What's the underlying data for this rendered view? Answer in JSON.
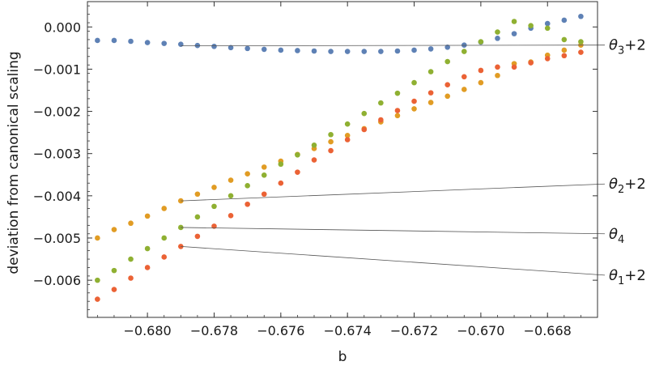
{
  "chart_data": {
    "type": "scatter",
    "xlabel": "b",
    "ylabel": "deviation from canonical scaling",
    "xlim": [
      -0.6818,
      -0.6665
    ],
    "ylim": [
      -0.00688,
      0.0006
    ],
    "frame": true,
    "grid": false,
    "x_ticks": [
      -0.68,
      -0.678,
      -0.676,
      -0.674,
      -0.672,
      -0.67,
      -0.668
    ],
    "x_tick_labels": [
      "−0.680",
      "−0.678",
      "−0.676",
      "−0.674",
      "−0.672",
      "−0.670",
      "−0.668"
    ],
    "y_ticks": [
      0.0,
      -0.001,
      -0.002,
      -0.003,
      -0.004,
      -0.005,
      -0.006
    ],
    "y_tick_labels": [
      "0.000",
      "−0.001",
      "−0.002",
      "−0.003",
      "−0.004",
      "−0.005",
      "−0.006"
    ],
    "x": [
      -0.6815,
      -0.681,
      -0.6805,
      -0.68,
      -0.6795,
      -0.679,
      -0.6785,
      -0.678,
      -0.6775,
      -0.677,
      -0.6765,
      -0.676,
      -0.6755,
      -0.675,
      -0.6745,
      -0.674,
      -0.6735,
      -0.673,
      -0.6725,
      -0.672,
      -0.6715,
      -0.671,
      -0.6705,
      -0.67,
      -0.6695,
      -0.669,
      -0.6685,
      -0.668,
      -0.6675,
      -0.667
    ],
    "series": [
      {
        "color": "#5e81b5",
        "values": [
          -0.00032,
          -0.00032,
          -0.00034,
          -0.00037,
          -0.00039,
          -0.00041,
          -0.00044,
          -0.00046,
          -0.00049,
          -0.00051,
          -0.00053,
          -0.00055,
          -0.00056,
          -0.00057,
          -0.00058,
          -0.00058,
          -0.00058,
          -0.00058,
          -0.00057,
          -0.00055,
          -0.00052,
          -0.00048,
          -0.00043,
          -0.00036,
          -0.00027,
          -0.00016,
          -3e-05,
          8e-05,
          0.00016,
          0.00025
        ]
      },
      {
        "color": "#e19c24",
        "values": [
          -0.005,
          -0.0048,
          -0.00465,
          -0.00448,
          -0.0043,
          -0.00412,
          -0.00396,
          -0.0038,
          -0.00363,
          -0.00348,
          -0.00332,
          -0.00318,
          -0.00302,
          -0.00288,
          -0.00272,
          -0.00257,
          -0.00241,
          -0.00225,
          -0.0021,
          -0.00194,
          -0.00179,
          -0.00164,
          -0.00148,
          -0.00132,
          -0.00115,
          -0.00087,
          -0.00083,
          -0.00067,
          -0.00055,
          -0.00043
        ]
      },
      {
        "color": "#8fb032",
        "values": [
          -0.006,
          -0.00577,
          -0.0055,
          -0.00525,
          -0.005,
          -0.00475,
          -0.0045,
          -0.00425,
          -0.004,
          -0.00376,
          -0.00351,
          -0.00325,
          -0.00303,
          -0.0028,
          -0.00255,
          -0.0023,
          -0.00205,
          -0.0018,
          -0.00157,
          -0.00132,
          -0.00106,
          -0.00082,
          -0.00058,
          -0.00035,
          -0.00012,
          0.00013,
          3e-05,
          -3e-05,
          -0.0003,
          -0.00035
        ]
      },
      {
        "color": "#eb6235",
        "values": [
          -0.00645,
          -0.00622,
          -0.00595,
          -0.0057,
          -0.00545,
          -0.0052,
          -0.00496,
          -0.00472,
          -0.00447,
          -0.0042,
          -0.00396,
          -0.0037,
          -0.00344,
          -0.00315,
          -0.00293,
          -0.00267,
          -0.00243,
          -0.0022,
          -0.00198,
          -0.00176,
          -0.00156,
          -0.00137,
          -0.00118,
          -0.00103,
          -0.00095,
          -0.00095,
          -0.00085,
          -0.00075,
          -0.00068,
          -0.0006
        ]
      }
    ],
    "annotations": [
      {
        "base": "θ",
        "sub": "3",
        "suffix": "+2",
        "series": 0
      },
      {
        "base": "θ",
        "sub": "2",
        "suffix": "+2",
        "series": 1
      },
      {
        "base": "θ",
        "sub": "4",
        "suffix": "",
        "series": 2
      },
      {
        "base": "θ",
        "sub": "1",
        "suffix": "+2",
        "series": 3
      }
    ]
  }
}
